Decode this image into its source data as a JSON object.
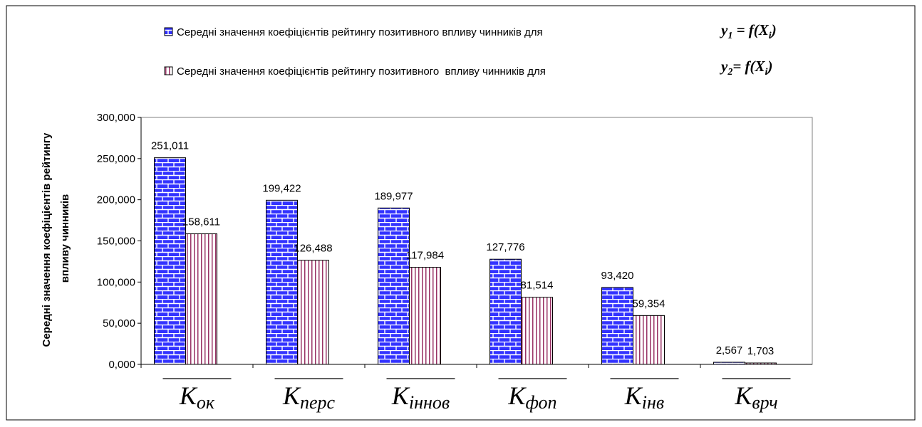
{
  "chart_data": {
    "type": "bar",
    "y_label": [
      "Середні значення коефіцієнтів рейтингу",
      "впливу чинників"
    ],
    "categories": [
      {
        "symbol": "K",
        "subscript": "ок"
      },
      {
        "symbol": "K",
        "subscript": "перс"
      },
      {
        "symbol": "K",
        "subscript": "іннов"
      },
      {
        "symbol": "K",
        "subscript": "фоп"
      },
      {
        "symbol": "K",
        "subscript": "інв"
      },
      {
        "symbol": "K",
        "subscript": "врч"
      }
    ],
    "series": [
      {
        "name": "Середні значення коефіцієнтів рейтингу позитивного впливу чинників для",
        "formula": [
          "y",
          "1",
          " = f(X",
          "i",
          ")"
        ],
        "color": "#3333ff",
        "pattern": "brick",
        "values": [
          251.011,
          199.422,
          189.977,
          127.776,
          93.42,
          2.567
        ],
        "value_labels": [
          "251,011",
          "199,422",
          "189,977",
          "127,776",
          "93,420",
          "2,567"
        ]
      },
      {
        "name": "Середні значення коефіцієнтів рейтингу позитивного  впливу чинників для",
        "formula": [
          "y",
          "2",
          "= f(X",
          "i",
          ")"
        ],
        "color": "#993366",
        "pattern": "vertical-stripes",
        "values": [
          158.611,
          126.488,
          117.984,
          81.514,
          59.354,
          1.703
        ],
        "value_labels": [
          "158,611",
          "126,488",
          "117,984",
          "81,514",
          "59,354",
          "1,703"
        ]
      }
    ],
    "ylim": [
      0,
      300
    ],
    "yticks": [
      {
        "value": 0,
        "label": "0,000"
      },
      {
        "value": 50,
        "label": "50,000"
      },
      {
        "value": 100,
        "label": "100,000"
      },
      {
        "value": 150,
        "label": "150,000"
      },
      {
        "value": 200,
        "label": "200,000"
      },
      {
        "value": 250,
        "label": "250,000"
      },
      {
        "value": 300,
        "label": "300,000"
      }
    ],
    "grid": false
  }
}
